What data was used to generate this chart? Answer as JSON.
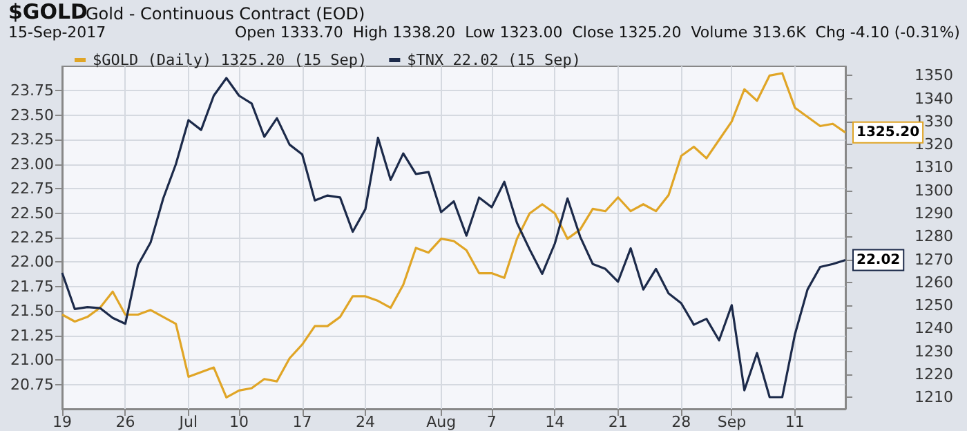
{
  "chart_data": {
    "type": "line",
    "title": "$GOLD",
    "subtitle": "Gold - Continuous Contract (EOD)",
    "annotations": [
      "15-Sep-2017",
      "Open 1333.70  High 1338.20  Low 1323.00  Close 1325.20  Volume 313.6K  Chg -4.10 (-0.31%)"
    ],
    "categories": [
      "19",
      null,
      null,
      null,
      null,
      "26",
      null,
      null,
      null,
      null,
      "Jul",
      null,
      null,
      null,
      "10",
      null,
      null,
      null,
      null,
      "17",
      null,
      null,
      null,
      null,
      "24",
      null,
      null,
      null,
      null,
      null,
      "Aug",
      null,
      null,
      null,
      "7",
      null,
      null,
      null,
      null,
      "14",
      null,
      null,
      null,
      null,
      "21",
      null,
      null,
      null,
      null,
      "28",
      null,
      null,
      null,
      "Sep",
      null,
      null,
      null,
      null,
      "11",
      null,
      null,
      null,
      null
    ],
    "series": [
      {
        "name": "$GOLD (Daily) 1325.20 (15 Sep)",
        "color": "#e0a526",
        "axis": "y2",
        "values": [
          1246,
          1243,
          1245,
          1249,
          1256,
          1246,
          1246,
          1248,
          1245,
          1242,
          1219,
          1221,
          1223,
          1210,
          1213,
          1214,
          1218,
          1217,
          1227,
          1233,
          1241,
          1241,
          1245,
          1254,
          1254,
          1252,
          1249,
          1259,
          1275,
          1273,
          1279,
          1278,
          1274,
          1264,
          1264,
          1262,
          1279,
          1290,
          1294,
          1290,
          1279,
          1283,
          1292,
          1291,
          1297,
          1291,
          1294,
          1291,
          1298,
          1315,
          1319,
          1314,
          1322,
          1330,
          1344,
          1339,
          1350,
          1351,
          1336,
          1332,
          1328,
          1329,
          1325.2
        ],
        "value_labels": [
          null,
          null,
          null,
          null,
          null,
          null,
          null,
          null,
          null,
          null,
          null,
          null,
          null,
          null,
          null,
          null,
          null,
          null,
          null,
          null,
          null,
          null,
          null,
          null,
          null,
          null,
          null,
          null,
          null,
          null,
          null,
          null,
          null,
          null,
          null,
          null,
          null,
          null,
          null,
          null,
          null,
          null,
          null,
          null,
          null,
          null,
          null,
          null,
          null,
          null,
          null,
          null,
          null,
          null,
          null,
          null,
          null,
          null,
          null,
          null,
          null,
          null,
          "1325.20"
        ]
      },
      {
        "name": "$TNX 22.02 (15 Sep)",
        "color": "#1c2a4a",
        "values": [
          21.89,
          21.52,
          21.54,
          21.53,
          21.43,
          21.37,
          21.97,
          22.2,
          22.65,
          23.0,
          23.45,
          23.35,
          23.7,
          23.88,
          23.7,
          23.62,
          23.28,
          23.47,
          23.2,
          23.1,
          22.63,
          22.68,
          22.66,
          22.31,
          22.54,
          23.27,
          22.84,
          23.11,
          22.9,
          22.92,
          22.51,
          22.62,
          22.27,
          22.66,
          22.56,
          22.82,
          22.4,
          22.13,
          21.88,
          22.19,
          22.65,
          22.26,
          21.98,
          21.93,
          21.8,
          22.14,
          21.72,
          21.93,
          21.68,
          21.58,
          21.36,
          21.42,
          21.2,
          21.56,
          20.69,
          21.07,
          20.62,
          20.62,
          21.26,
          21.72,
          21.95,
          21.98,
          22.02
        ],
        "value_labels": [
          null,
          null,
          null,
          null,
          null,
          null,
          null,
          null,
          null,
          null,
          null,
          null,
          null,
          null,
          null,
          null,
          null,
          null,
          null,
          null,
          null,
          null,
          null,
          null,
          null,
          null,
          null,
          null,
          null,
          null,
          null,
          null,
          null,
          null,
          null,
          null,
          null,
          null,
          null,
          null,
          null,
          null,
          null,
          null,
          null,
          null,
          null,
          null,
          null,
          null,
          null,
          null,
          null,
          null,
          null,
          null,
          null,
          null,
          null,
          null,
          null,
          null,
          "22.02"
        ]
      }
    ],
    "ylim": [
      20.5,
      24.0
    ],
    "yticks": [
      {
        "value": 20.75,
        "label": "20.75"
      },
      {
        "value": 21,
        "label": "21.00"
      },
      {
        "value": 21.25,
        "label": "21.25"
      },
      {
        "value": 21.5,
        "label": "21.50"
      },
      {
        "value": 21.75,
        "label": "21.75"
      },
      {
        "value": 22,
        "label": "22.00"
      },
      {
        "value": 22.25,
        "label": "22.25"
      },
      {
        "value": 22.5,
        "label": "22.50"
      },
      {
        "value": 22.75,
        "label": "22.75"
      },
      {
        "value": 23,
        "label": "23.00"
      },
      {
        "value": 23.25,
        "label": "23.25"
      },
      {
        "value": 23.5,
        "label": "23.50"
      },
      {
        "value": 23.75,
        "label": "23.75"
      }
    ],
    "y2lim": [
      1205,
      1354
    ],
    "y2ticks": [
      1210,
      1220,
      1230,
      1240,
      1250,
      1260,
      1270,
      1280,
      1290,
      1300,
      1310,
      1320,
      1330,
      1340,
      1350
    ],
    "grid": true,
    "legend": "top left",
    "marker": "none"
  }
}
